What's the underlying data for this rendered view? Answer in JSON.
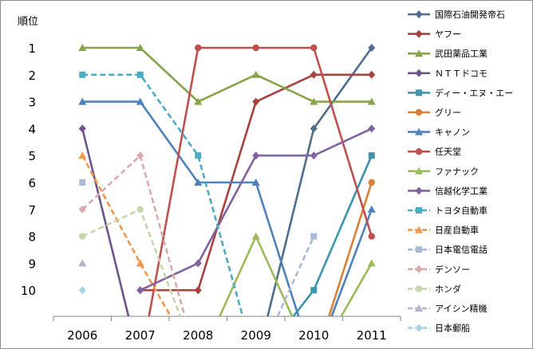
{
  "chart_data": {
    "type": "line",
    "title": "",
    "ylabel": "順位",
    "xlabel": "",
    "categories": [
      "2006",
      "2007",
      "2008",
      "2009",
      "2010",
      "2011"
    ],
    "y_ticks": [
      "1",
      "2",
      "3",
      "4",
      "5",
      "6",
      "7",
      "8",
      "9",
      "10"
    ],
    "ylim": [
      1,
      11
    ],
    "y_inverted": true,
    "legend_position": "right",
    "series": [
      {
        "name": "国際石油開発帝石",
        "color": "#4F6D8F",
        "marker": "diamond",
        "dashed": false,
        "values": [
          null,
          null,
          null,
          null,
          4,
          1
        ],
        "offscale": [
          false,
          false,
          false,
          true,
          false,
          false
        ]
      },
      {
        "name": "ヤフー",
        "color": "#A8423F",
        "marker": "diamond",
        "dashed": false,
        "values": [
          null,
          10,
          10,
          3,
          2,
          2
        ],
        "offscale": [
          false,
          true,
          false,
          false,
          false,
          false
        ]
      },
      {
        "name": "武田薬品工業",
        "color": "#86A44A",
        "marker": "triangle",
        "dashed": false,
        "values": [
          1,
          1,
          3,
          2,
          3,
          3
        ],
        "offscale": [
          false,
          false,
          false,
          false,
          false,
          false
        ]
      },
      {
        "name": "ＮＴＴドコモ",
        "color": "#6E548D",
        "marker": "diamond",
        "dashed": false,
        "values": [
          4,
          null,
          null,
          null,
          null,
          null
        ],
        "offscale": [
          false,
          true,
          false,
          false,
          false,
          false
        ]
      },
      {
        "name": "ディー・エヌ・エー",
        "color": "#3D96AE",
        "marker": "square",
        "dashed": false,
        "values": [
          null,
          null,
          null,
          null,
          10,
          5
        ],
        "offscale": [
          false,
          false,
          false,
          true,
          false,
          false
        ]
      },
      {
        "name": "グリー",
        "color": "#DA8137",
        "marker": "circle",
        "dashed": false,
        "values": [
          null,
          null,
          null,
          null,
          null,
          6
        ],
        "offscale": [
          false,
          false,
          false,
          false,
          true,
          false
        ]
      },
      {
        "name": "キャノン",
        "color": "#4F81BD",
        "marker": "triangle",
        "dashed": false,
        "values": [
          3,
          3,
          6,
          6,
          null,
          7
        ],
        "offscale": [
          false,
          false,
          false,
          false,
          true,
          false
        ]
      },
      {
        "name": "任天堂",
        "color": "#C0504D",
        "marker": "circle",
        "dashed": false,
        "values": [
          null,
          null,
          1,
          1,
          1,
          8
        ],
        "offscale": [
          false,
          true,
          false,
          false,
          false,
          false
        ]
      },
      {
        "name": "ファナック",
        "color": "#9BBB59",
        "marker": "triangle",
        "dashed": false,
        "values": [
          null,
          null,
          null,
          8,
          null,
          9
        ],
        "offscale": [
          false,
          false,
          true,
          false,
          true,
          false
        ]
      },
      {
        "name": "信越化学工業",
        "color": "#8064A2",
        "marker": "diamond",
        "dashed": false,
        "values": [
          null,
          10,
          9,
          5,
          5,
          4
        ],
        "offscale": [
          false,
          true,
          false,
          false,
          false,
          false
        ]
      },
      {
        "name": "トヨタ自動車",
        "color": "#4BACC6",
        "marker": "square",
        "dashed": true,
        "values": [
          2,
          2,
          5,
          null,
          null,
          null
        ],
        "offscale": [
          false,
          false,
          false,
          true,
          false,
          false
        ]
      },
      {
        "name": "日産自動車",
        "color": "#F79646",
        "marker": "triangle",
        "dashed": true,
        "values": [
          5,
          9,
          null,
          null,
          null,
          null
        ],
        "offscale": [
          false,
          false,
          true,
          false,
          false,
          false
        ]
      },
      {
        "name": "日本電信電話",
        "color": "#AABAD7",
        "marker": "square",
        "dashed": true,
        "values": [
          6,
          null,
          null,
          null,
          8,
          null
        ],
        "offscale": [
          true,
          false,
          false,
          true,
          true,
          false
        ]
      },
      {
        "name": "デンソー",
        "color": "#D9AAA9",
        "marker": "diamond",
        "dashed": true,
        "values": [
          7,
          5,
          null,
          null,
          null,
          null
        ],
        "offscale": [
          false,
          false,
          true,
          false,
          false,
          false
        ]
      },
      {
        "name": "ホンダ",
        "color": "#C6D6AC",
        "marker": "circle",
        "dashed": true,
        "values": [
          8,
          7,
          null,
          null,
          null,
          null
        ],
        "offscale": [
          false,
          false,
          true,
          false,
          false,
          false
        ]
      },
      {
        "name": "アイシン精機",
        "color": "#BAB0C9",
        "marker": "triangle",
        "dashed": true,
        "values": [
          9,
          null,
          null,
          null,
          null,
          null
        ],
        "offscale": [
          true,
          false,
          false,
          false,
          false,
          false
        ]
      },
      {
        "name": "日本郵船",
        "color": "#A5D5E2",
        "marker": "diamond",
        "dashed": true,
        "values": [
          10,
          null,
          null,
          null,
          null,
          null
        ],
        "offscale": [
          true,
          false,
          false,
          false,
          false,
          false
        ]
      }
    ]
  }
}
